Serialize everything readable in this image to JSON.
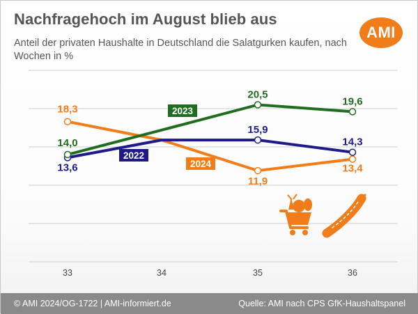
{
  "header": {
    "title": "Nachfragehoch im August blieb aus",
    "subtitle": "Anteil der privaten Haushalte in Deutschland die Salatgurken kaufen, nach Wochen in %",
    "logo_text": "AMI"
  },
  "footer": {
    "copyright": "© AMI 2024/OG-1722 | AMI-informiert.de",
    "source": "Quelle: AMI nach CPS GfK-Haushaltspanel"
  },
  "colors": {
    "2022": "#1f1a8a",
    "2023": "#1f6e1f",
    "2024": "#f07d19",
    "grid": "#cfcfcf",
    "brand": "#f07d19"
  },
  "chart_data": {
    "type": "line",
    "x": [
      "33",
      "34",
      "35",
      "36"
    ],
    "ylim": [
      0,
      25
    ],
    "grid": true,
    "series": [
      {
        "name": "2022",
        "values": [
          13.6,
          15.9,
          15.9,
          14.3
        ],
        "labels": [
          "13,6",
          null,
          "15,9",
          "14,3"
        ],
        "color": "#1f1a8a"
      },
      {
        "name": "2023",
        "values": [
          14.0,
          17.2,
          20.5,
          19.6
        ],
        "labels": [
          "14,0",
          null,
          "20,5",
          "19,6"
        ],
        "color": "#1f6e1f"
      },
      {
        "name": "2024",
        "values": [
          18.3,
          15.9,
          11.9,
          13.4
        ],
        "labels": [
          "18,3",
          null,
          "11,9",
          "13,4"
        ],
        "color": "#f07d19"
      }
    ]
  }
}
